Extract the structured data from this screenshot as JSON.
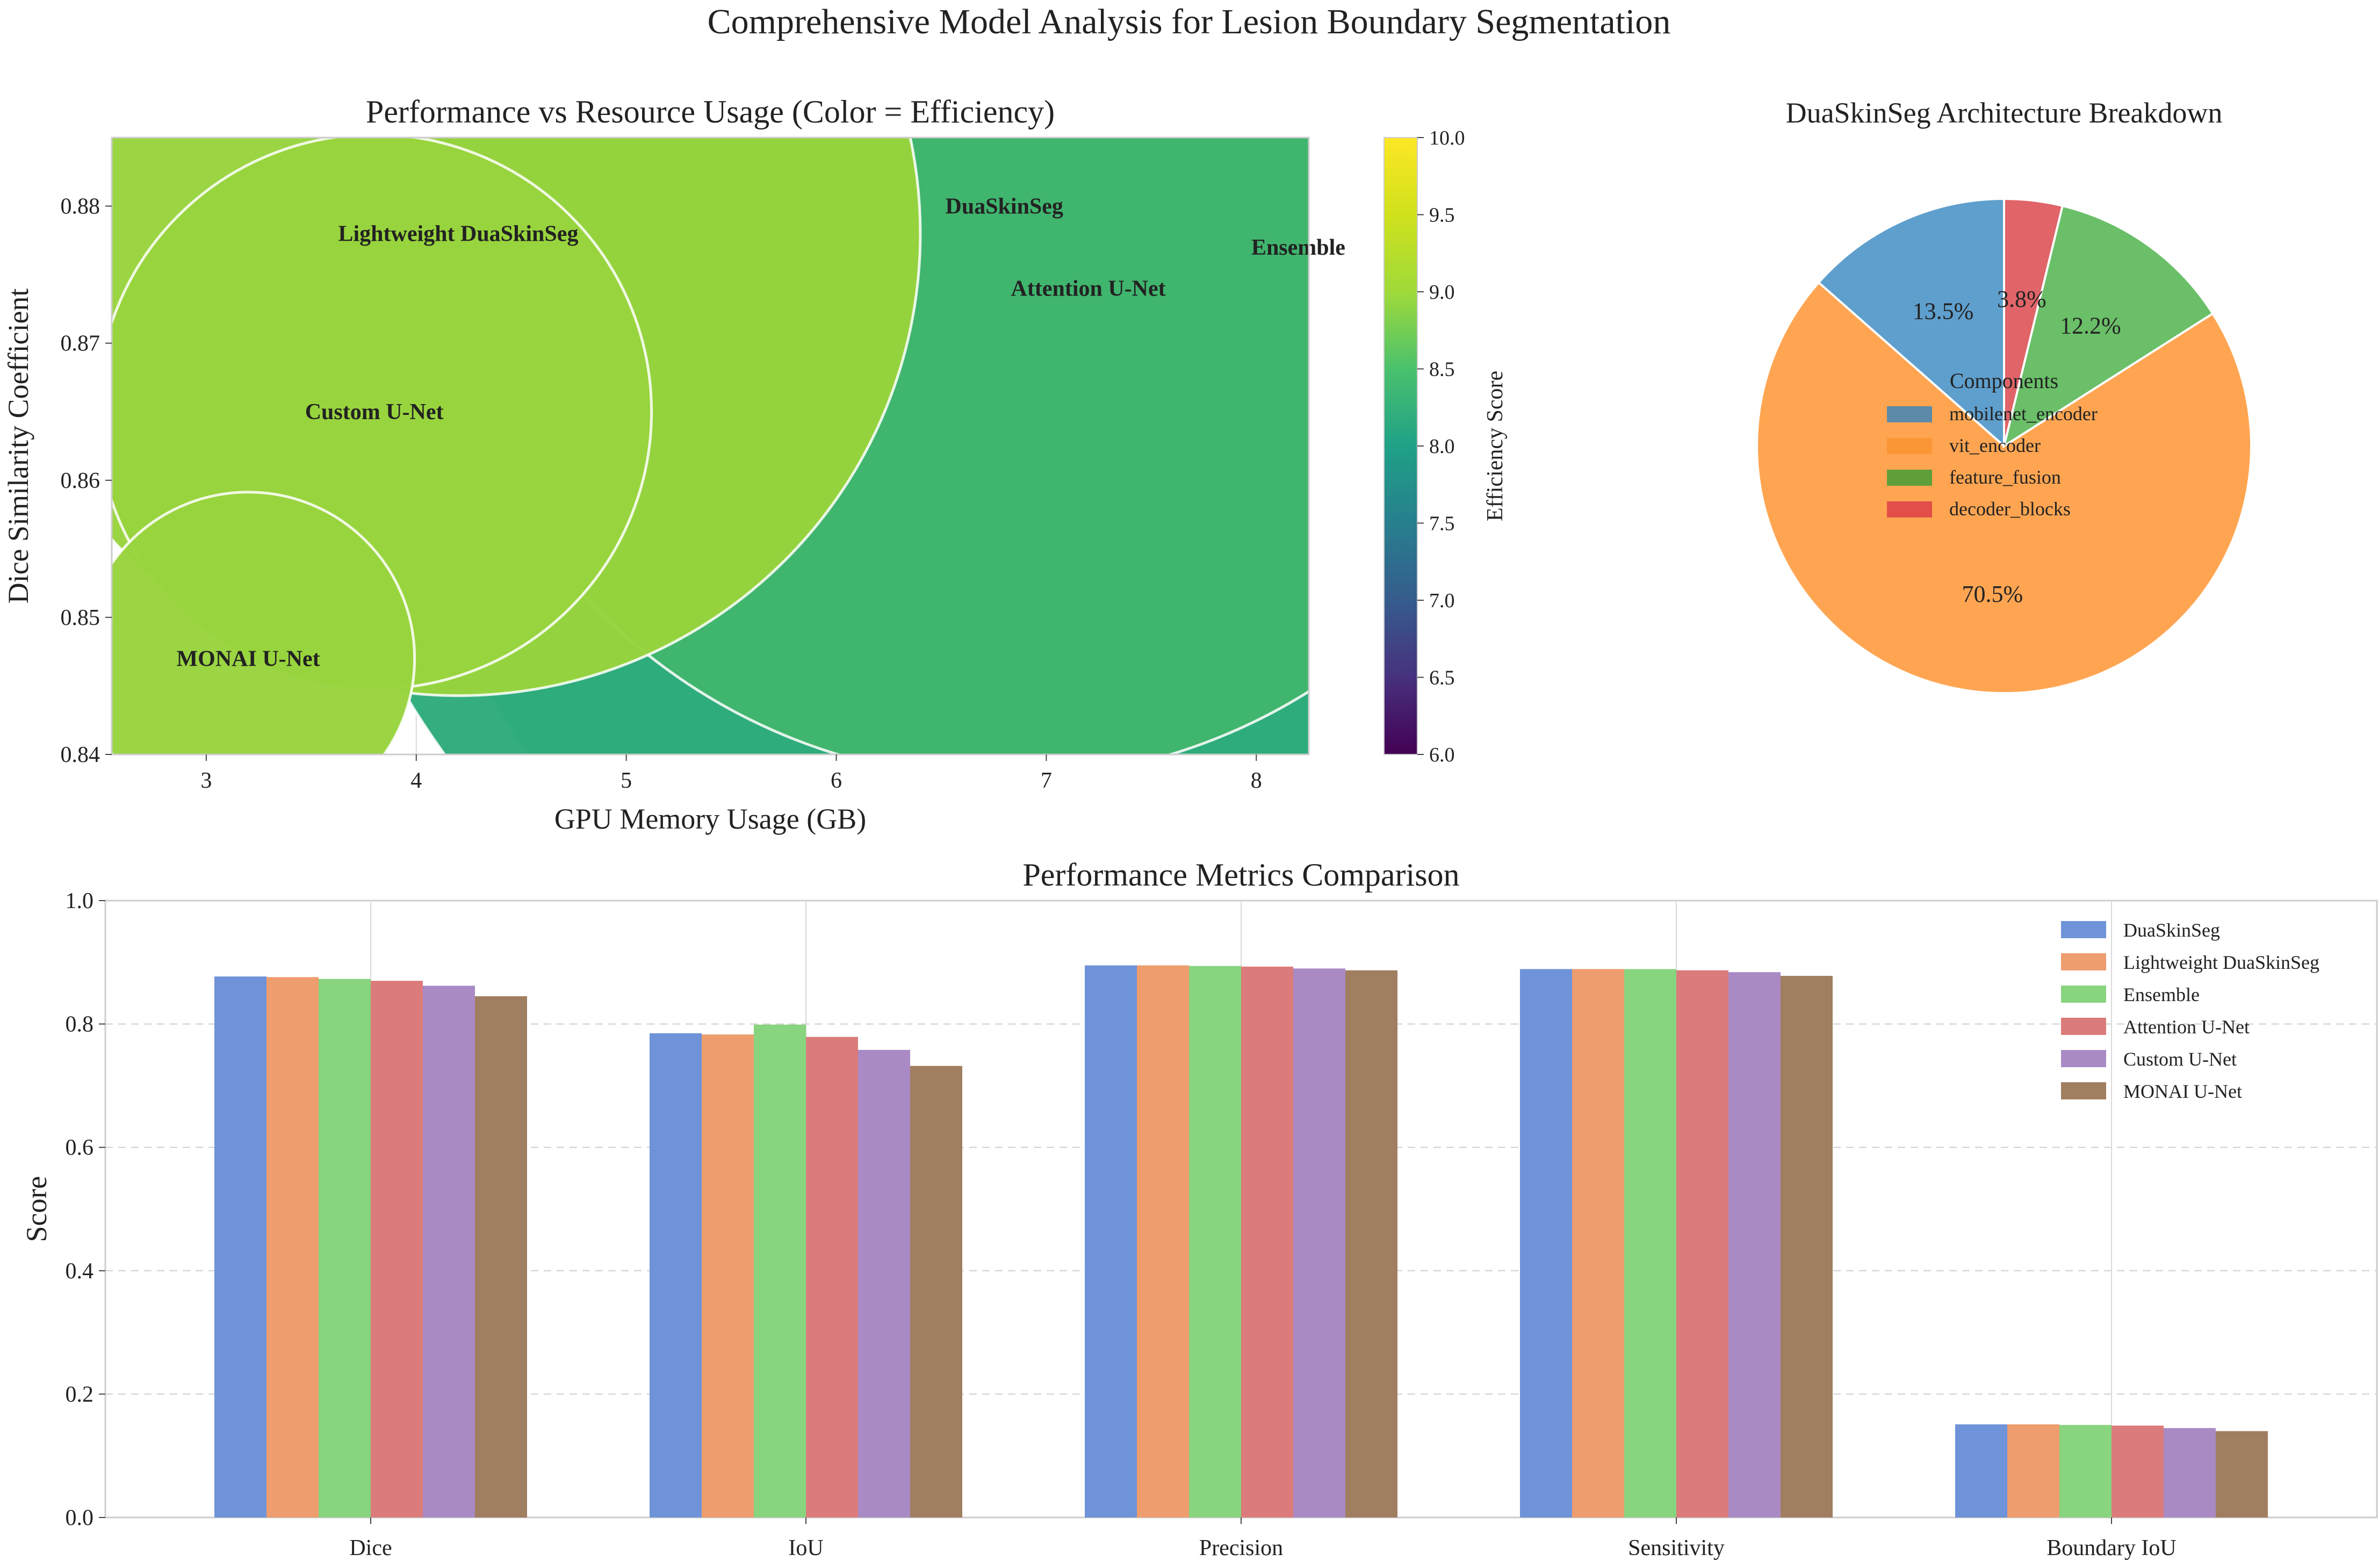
{
  "figure": {
    "title": "Comprehensive Model Analysis for Lesion Boundary Segmentation"
  },
  "chart_data": [
    {
      "id": "scatter",
      "type": "scatter",
      "title": "Performance vs Resource Usage (Color = Efficiency)",
      "xlabel": "GPU Memory Usage (GB)",
      "ylabel": "Dice Similarity Coefficient",
      "xlim": [
        2.55,
        8.25
      ],
      "ylim": [
        0.84,
        0.885
      ],
      "xticks": [
        3,
        4,
        5,
        6,
        7,
        8
      ],
      "yticks": [
        0.84,
        0.85,
        0.86,
        0.87,
        0.88
      ],
      "colorbar": {
        "label": "Efficiency Score",
        "range": [
          6.0,
          10.0
        ],
        "ticks": [
          6.0,
          6.5,
          7.0,
          7.5,
          8.0,
          8.5,
          9.0,
          9.5,
          10.0
        ],
        "colormap": "viridis"
      },
      "points": [
        {
          "name": "Ensemble",
          "x": 8.2,
          "y": 0.877,
          "efficiency": 8.55,
          "size_scale": 1.0,
          "color": "#31ab79"
        },
        {
          "name": "Attention U-Net",
          "x": 7.2,
          "y": 0.874,
          "efficiency": 8.55,
          "size_scale": 0.86,
          "color": "#2eab7b"
        },
        {
          "name": "DuaSkinSeg",
          "x": 6.8,
          "y": 0.88,
          "efficiency": 8.8,
          "size_scale": 0.62,
          "color": "#41b56d"
        },
        {
          "name": "Lightweight DuaSkinSeg",
          "x": 4.2,
          "y": 0.878,
          "efficiency": 9.3,
          "size_scale": 0.5,
          "color": "#98d43d"
        },
        {
          "name": "Custom U-Net",
          "x": 3.8,
          "y": 0.865,
          "efficiency": 9.3,
          "size_scale": 0.3,
          "color": "#98d43d"
        },
        {
          "name": "MONAI U-Net",
          "x": 3.2,
          "y": 0.847,
          "efficiency": 9.3,
          "size_scale": 0.18,
          "color": "#98d43d"
        }
      ],
      "grid": true
    },
    {
      "id": "pie",
      "type": "pie",
      "title": "DuaSkinSeg Architecture Breakdown",
      "legend_title": "Components",
      "legend_position": "center",
      "slices": [
        {
          "label": "mobilenet_encoder",
          "value": 13.5,
          "pct_label": "13.5%",
          "color": "#5f9fcd",
          "legend_color": "#5c8aa8"
        },
        {
          "label": "vit_encoder",
          "value": 70.5,
          "pct_label": "70.5%",
          "color": "#ffa552",
          "legend_color": "#fb9637"
        },
        {
          "label": "feature_fusion",
          "value": 12.2,
          "pct_label": "12.2%",
          "color": "#6abf68",
          "legend_color": "#5f9f3a"
        },
        {
          "label": "decoder_blocks",
          "value": 3.8,
          "pct_label": "3.8%",
          "color": "#e06468",
          "legend_color": "#e24e48"
        }
      ]
    },
    {
      "id": "bars",
      "type": "bar",
      "title": "Performance Metrics Comparison",
      "xlabel": "",
      "ylabel": "Score",
      "ylim": [
        0.0,
        1.0
      ],
      "yticks": [
        0.0,
        0.2,
        0.4,
        0.6,
        0.8,
        1.0
      ],
      "categories": [
        "Dice",
        "IoU",
        "Precision",
        "Sensitivity",
        "Boundary IoU"
      ],
      "legend_position": "top-right",
      "series": [
        {
          "name": "DuaSkinSeg",
          "color": "#6f93d8",
          "values": [
            0.877,
            0.785,
            0.895,
            0.889,
            0.151
          ]
        },
        {
          "name": "Lightweight DuaSkinSeg",
          "color": "#ee9d6e",
          "values": [
            0.876,
            0.783,
            0.895,
            0.889,
            0.151
          ]
        },
        {
          "name": "Ensemble",
          "color": "#88d47f",
          "values": [
            0.873,
            0.799,
            0.894,
            0.889,
            0.15
          ]
        },
        {
          "name": "Attention U-Net",
          "color": "#dc7b7b",
          "values": [
            0.87,
            0.779,
            0.893,
            0.887,
            0.149
          ]
        },
        {
          "name": "Custom U-Net",
          "color": "#a98ac4",
          "values": [
            0.862,
            0.758,
            0.89,
            0.884,
            0.145
          ]
        },
        {
          "name": "MONAI U-Net",
          "color": "#a07e60",
          "values": [
            0.845,
            0.732,
            0.887,
            0.878,
            0.14
          ]
        }
      ],
      "grid": true
    }
  ]
}
